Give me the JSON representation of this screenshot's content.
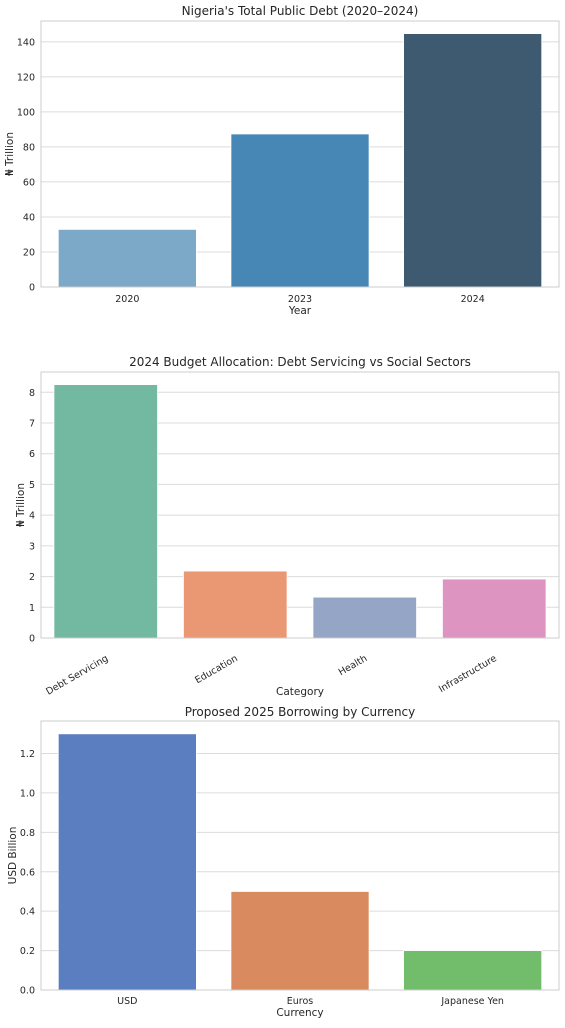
{
  "chart_data": [
    {
      "type": "bar",
      "title": "Nigeria's Total Public Debt (2020–2024)",
      "xlabel": "Year",
      "ylabel": "₦ Trillion",
      "categories": [
        "2020",
        "2023",
        "2024"
      ],
      "values": [
        32.9,
        87.4,
        144.7
      ],
      "ylim": [
        0,
        151.9
      ],
      "yticks": [
        0,
        20,
        40,
        60,
        80,
        100,
        120,
        140
      ],
      "colors": [
        "#7da9c9",
        "#4787b5",
        "#3d5a70"
      ],
      "grid": true,
      "legend": "none"
    },
    {
      "type": "bar",
      "title": "2024 Budget Allocation: Debt Servicing vs Social Sectors",
      "xlabel": "Category",
      "ylabel": "₦ Trillion",
      "categories": [
        "Debt Servicing",
        "Education",
        "Health",
        "Infrastructure"
      ],
      "values": [
        8.25,
        2.18,
        1.33,
        1.92
      ],
      "ylim": [
        0,
        8.66
      ],
      "yticks": [
        0,
        1,
        2,
        3,
        4,
        5,
        6,
        7,
        8
      ],
      "colors": [
        "#73b9a2",
        "#ea9874",
        "#94a5c5",
        "#de94c1"
      ],
      "grid": true,
      "legend": "none",
      "xtick_rotation": -30
    },
    {
      "type": "bar",
      "title": "Proposed 2025 Borrowing by Currency",
      "xlabel": "Currency",
      "ylabel": "USD Billion",
      "categories": [
        "USD",
        "Euros",
        "Japanese Yen"
      ],
      "values": [
        1.3,
        0.5,
        0.2
      ],
      "ylim": [
        0,
        1.365
      ],
      "yticks": [
        0.0,
        0.2,
        0.4,
        0.6,
        0.8,
        1.0,
        1.2
      ],
      "ytick_labels": [
        "0.0",
        "0.2",
        "0.4",
        "0.6",
        "0.8",
        "1.0",
        "1.2"
      ],
      "colors": [
        "#5b7ec0",
        "#d98b5f",
        "#72bd6c"
      ],
      "grid": true,
      "legend": "none"
    }
  ]
}
